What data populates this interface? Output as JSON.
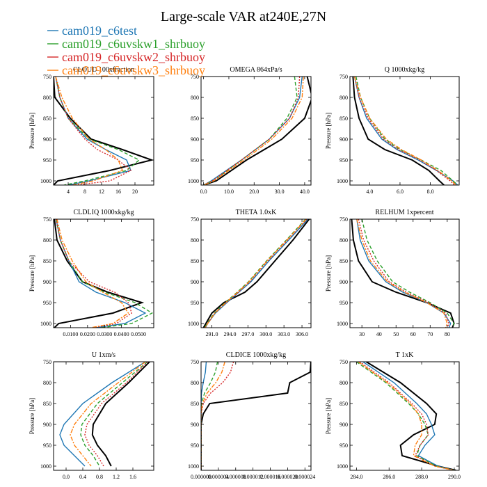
{
  "figure": {
    "title": "Large-scale VAR at240E,27N",
    "legend": {
      "placement": "top-left",
      "entries": [
        {
          "name": "cam019_c6test",
          "color": "#1f77b4",
          "dash": "solid"
        },
        {
          "name": "cam019_c6uvskw1_shrbuoy",
          "color": "#2ca02c",
          "dash": "dashed"
        },
        {
          "name": "cam019_c6uvskw2_shrbuoy",
          "color": "#d62728",
          "dash": "dotted"
        },
        {
          "name": "cam019_c6uvskw3_shrbuoy",
          "color": "#ff7f0e",
          "dash": "dashdot"
        }
      ]
    },
    "black_line_color": "#000000"
  },
  "chart_data": [
    {
      "type": "line",
      "title": "CLOUD  100xfraction",
      "ylabel": "Pressure [hPa]",
      "xlim": [
        0.5,
        24.5
      ],
      "ylim": [
        1010,
        750
      ],
      "xticks": [
        4,
        8,
        12,
        16,
        20
      ],
      "xtick_labels": [
        "4",
        "8",
        "12",
        "16",
        "20"
      ],
      "yticks": [
        750,
        800,
        850,
        900,
        950,
        1000
      ],
      "ytick_labels": [
        "750",
        "800",
        "850",
        "900",
        "950",
        "1000"
      ],
      "pressure": [
        750,
        800,
        850,
        900,
        925,
        950,
        975,
        1000,
        1010
      ],
      "series": [
        {
          "name": "black",
          "x": [
            0.5,
            0.8,
            4.5,
            9.5,
            17,
            24,
            14,
            1.5,
            0.5
          ]
        },
        {
          "name": "cam019_c6test",
          "x": [
            1,
            2,
            4,
            8.5,
            13,
            18,
            19,
            9,
            4
          ]
        },
        {
          "name": "cam019_c6uvskw1_shrbuoy",
          "x": [
            1,
            2,
            4,
            9,
            16,
            21,
            18,
            8,
            3
          ]
        },
        {
          "name": "cam019_c6uvskw2_shrbuoy",
          "x": [
            1,
            2,
            4,
            8,
            11,
            16,
            19,
            14,
            6
          ]
        },
        {
          "name": "cam019_c6uvskw3_shrbuoy",
          "x": [
            1,
            2.5,
            5,
            9,
            13,
            16,
            17,
            10,
            5
          ]
        }
      ]
    },
    {
      "type": "line",
      "title": "OMEGA  864xPa/s",
      "ylabel": "",
      "xlim": [
        -1,
        42.5
      ],
      "ylim": [
        1010,
        750
      ],
      "xticks": [
        0,
        10,
        20,
        30,
        40
      ],
      "xtick_labels": [
        "0.0",
        "10.0",
        "20.0",
        "30.0",
        "40.0"
      ],
      "yticks": [
        750,
        800,
        850,
        900,
        950,
        1000
      ],
      "ytick_labels": [
        "750",
        "800",
        "850",
        "900",
        "950",
        "1000"
      ],
      "pressure": [
        750,
        800,
        850,
        900,
        950,
        1000,
        1010
      ],
      "series": [
        {
          "name": "black",
          "x": [
            41,
            43,
            40,
            31,
            17,
            5,
            0
          ]
        },
        {
          "name": "cam019_c6test",
          "x": [
            39,
            38,
            34,
            26,
            15,
            3,
            0
          ]
        },
        {
          "name": "cam019_c6uvskw1_shrbuoy",
          "x": [
            36,
            37,
            33,
            26,
            15,
            4,
            0
          ]
        },
        {
          "name": "cam019_c6uvskw2_shrbuoy",
          "x": [
            38,
            37.5,
            34,
            26,
            15,
            3.5,
            0
          ]
        },
        {
          "name": "cam019_c6uvskw3_shrbuoy",
          "x": [
            39.5,
            39,
            35,
            27,
            16,
            4,
            0
          ]
        }
      ]
    },
    {
      "type": "line",
      "title": "Q  1000xkg/kg",
      "ylabel": "Pressure [hPa]",
      "xlim": [
        2.7,
        9.9
      ],
      "ylim": [
        1010,
        750
      ],
      "xticks": [
        4,
        6,
        8
      ],
      "xtick_labels": [
        "4.0",
        "6.0",
        "8.0"
      ],
      "yticks": [
        750,
        800,
        850,
        900,
        950,
        1000
      ],
      "ytick_labels": [
        "750",
        "800",
        "850",
        "900",
        "950",
        "1000"
      ],
      "pressure": [
        750,
        800,
        850,
        900,
        925,
        950,
        975,
        1000,
        1010
      ],
      "series": [
        {
          "name": "black",
          "x": [
            2.9,
            3.0,
            3.3,
            3.9,
            5.0,
            6.8,
            7.9,
            8.6,
            8.9
          ]
        },
        {
          "name": "cam019_c6test",
          "x": [
            3.0,
            3.3,
            3.8,
            4.8,
            5.8,
            7.2,
            8.4,
            9.5,
            9.8
          ]
        },
        {
          "name": "cam019_c6uvskw1_shrbuoy",
          "x": [
            3.1,
            3.4,
            4.0,
            5.0,
            6.0,
            7.4,
            8.7,
            9.5,
            9.8
          ]
        },
        {
          "name": "cam019_c6uvskw2_shrbuoy",
          "x": [
            3.0,
            3.3,
            3.9,
            4.9,
            5.9,
            7.3,
            8.4,
            9.3,
            9.6
          ]
        },
        {
          "name": "cam019_c6uvskw3_shrbuoy",
          "x": [
            3.0,
            3.4,
            4.0,
            5.1,
            6.1,
            7.4,
            8.5,
            9.4,
            9.7
          ]
        }
      ]
    },
    {
      "type": "line",
      "title": "CLDLIQ  1000xkg/kg",
      "ylabel": "Pressure [hPa]",
      "xlim": [
        0.0,
        0.059
      ],
      "ylim": [
        1010,
        750
      ],
      "xticks": [
        0.01,
        0.02,
        0.03,
        0.04,
        0.05
      ],
      "xtick_labels": [
        "0.0100",
        "0.0200",
        "0.0300",
        "0.0400",
        "0.0500"
      ],
      "yticks": [
        750,
        800,
        850,
        900,
        950,
        1000
      ],
      "ytick_labels": [
        "750",
        "800",
        "850",
        "900",
        "950",
        "1000"
      ],
      "pressure": [
        750,
        800,
        850,
        900,
        925,
        950,
        975,
        1000,
        1010
      ],
      "series": [
        {
          "name": "black",
          "x": [
            0.0005,
            0.002,
            0.008,
            0.017,
            0.032,
            0.052,
            0.035,
            0.003,
            0.0005
          ]
        },
        {
          "name": "cam019_c6test",
          "x": [
            0.0015,
            0.004,
            0.009,
            0.015,
            0.025,
            0.042,
            0.054,
            0.042,
            0.025
          ]
        },
        {
          "name": "cam019_c6uvskw1_shrbuoy",
          "x": [
            0.0015,
            0.004,
            0.009,
            0.017,
            0.03,
            0.048,
            0.058,
            0.046,
            0.028
          ]
        },
        {
          "name": "cam019_c6uvskw2_shrbuoy",
          "x": [
            0.0015,
            0.004,
            0.009,
            0.021,
            0.036,
            0.044,
            0.046,
            0.037,
            0.023
          ]
        },
        {
          "name": "cam019_c6uvskw3_shrbuoy",
          "x": [
            0.002,
            0.005,
            0.011,
            0.019,
            0.029,
            0.04,
            0.044,
            0.035,
            0.022
          ]
        }
      ]
    },
    {
      "type": "line",
      "title": "THETA  1.0xK",
      "ylabel": "",
      "xlim": [
        289.2,
        307.5
      ],
      "ylim": [
        1010,
        750
      ],
      "xticks": [
        291,
        294,
        297,
        300,
        303,
        306
      ],
      "xtick_labels": [
        "291.0",
        "294.0",
        "297.0",
        "300.0",
        "303.0",
        "306.0"
      ],
      "yticks": [
        750,
        800,
        850,
        900,
        950,
        1000
      ],
      "ytick_labels": [
        "750",
        "800",
        "850",
        "900",
        "950",
        "1000"
      ],
      "pressure": [
        750,
        800,
        850,
        900,
        925,
        950,
        975,
        1000,
        1010
      ],
      "series": [
        {
          "name": "black",
          "x": [
            307.2,
            304.5,
            301.5,
            298.5,
            296.5,
            293,
            291,
            290,
            289.6
          ]
        },
        {
          "name": "cam019_c6test",
          "x": [
            307.0,
            303.8,
            300.5,
            297.5,
            295.5,
            293.5,
            291.6,
            290.3,
            289.9
          ]
        },
        {
          "name": "cam019_c6uvskw1_shrbuoy",
          "x": [
            306.6,
            303.4,
            300.1,
            297.1,
            295.2,
            293.2,
            291.4,
            290.2,
            289.8
          ]
        },
        {
          "name": "cam019_c6uvskw2_shrbuoy",
          "x": [
            306.8,
            303.6,
            300.3,
            297.3,
            295.4,
            293.4,
            291.5,
            290.3,
            289.9
          ]
        },
        {
          "name": "cam019_c6uvskw3_shrbuoy",
          "x": [
            306.7,
            303.5,
            300.2,
            297.2,
            295.3,
            293.3,
            291.5,
            290.3,
            289.9
          ]
        }
      ]
    },
    {
      "type": "line",
      "title": "RELHUM  1xpercent",
      "ylabel": "Pressure [hPa]",
      "xlim": [
        23,
        87
      ],
      "ylim": [
        1010,
        750
      ],
      "xticks": [
        30,
        40,
        50,
        60,
        70,
        80
      ],
      "xtick_labels": [
        "30",
        "40",
        "50",
        "60",
        "70",
        "80"
      ],
      "yticks": [
        750,
        800,
        850,
        900,
        950,
        1000
      ],
      "ytick_labels": [
        "750",
        "800",
        "850",
        "900",
        "950",
        "1000"
      ],
      "pressure": [
        750,
        800,
        850,
        900,
        925,
        950,
        975,
        1000,
        1010
      ],
      "series": [
        {
          "name": "black",
          "x": [
            24,
            25,
            28,
            36,
            50,
            68,
            82,
            84,
            83
          ]
        },
        {
          "name": "cam019_c6test",
          "x": [
            27,
            29,
            34,
            44,
            54,
            68,
            78,
            82,
            81
          ]
        },
        {
          "name": "cam019_c6uvskw1_shrbuoy",
          "x": [
            30,
            33,
            39,
            48,
            58,
            70,
            80,
            84,
            83
          ]
        },
        {
          "name": "cam019_c6uvskw2_shrbuoy",
          "x": [
            28,
            31,
            37,
            46,
            56,
            69,
            79,
            81,
            80
          ]
        },
        {
          "name": "cam019_c6uvskw3_shrbuoy",
          "x": [
            27,
            30,
            35,
            45,
            55,
            68,
            78,
            80,
            79
          ]
        }
      ]
    },
    {
      "type": "line",
      "title": "U  1xm/s",
      "ylabel": "Pressure [hPa]",
      "xlim": [
        -0.3,
        2.1
      ],
      "ylim": [
        1010,
        750
      ],
      "xticks": [
        0.0,
        0.4,
        0.8,
        1.2,
        1.6
      ],
      "xtick_labels": [
        "0.0",
        "0.4",
        "0.8",
        "1.2",
        "1.6"
      ],
      "yticks": [
        750,
        800,
        850,
        900,
        950,
        1000
      ],
      "ytick_labels": [
        "750",
        "800",
        "850",
        "900",
        "950",
        "1000"
      ],
      "pressure": [
        750,
        800,
        850,
        900,
        925,
        950,
        975,
        1000
      ],
      "series": [
        {
          "name": "black",
          "x": [
            2.0,
            1.5,
            0.95,
            0.65,
            0.63,
            0.75,
            0.95,
            1.08
          ]
        },
        {
          "name": "cam019_c6test",
          "x": [
            1.9,
            1.1,
            0.4,
            -0.05,
            -0.15,
            -0.05,
            0.2,
            0.45
          ]
        },
        {
          "name": "cam019_c6uvskw1_shrbuoy",
          "x": [
            1.95,
            1.35,
            0.75,
            0.38,
            0.35,
            0.45,
            0.65,
            0.8
          ]
        },
        {
          "name": "cam019_c6uvskw2_shrbuoy",
          "x": [
            1.95,
            1.45,
            0.85,
            0.5,
            0.45,
            0.55,
            0.75,
            0.9
          ]
        },
        {
          "name": "cam019_c6uvskw3_shrbuoy",
          "x": [
            1.9,
            1.25,
            0.6,
            0.2,
            0.1,
            0.2,
            0.4,
            0.6
          ]
        }
      ]
    },
    {
      "type": "line",
      "title": "CLDICE  1000xkg/kg",
      "ylabel": "",
      "xlim": [
        0.0,
        2.54e-05
      ],
      "ylim": [
        1010,
        750
      ],
      "xticks": [
        0.0,
        4e-06,
        8e-06,
        1.2e-05,
        1.6e-05,
        2e-05,
        2.4e-05
      ],
      "xtick_labels": [
        "0.000000",
        "0.000004",
        "0.000008",
        "0.000012",
        "0.000016",
        "0.000020",
        "0.000024"
      ],
      "yticks": [
        750,
        800,
        850,
        900,
        950,
        1000
      ],
      "ytick_labels": [
        "750",
        "800",
        "850",
        "900",
        "950",
        "1000"
      ],
      "pressure": [
        750,
        775,
        800,
        825,
        850,
        875,
        900,
        950,
        1000,
        1010
      ],
      "series": [
        {
          "name": "black",
          "x": [
            2.54e-05,
            2.52e-05,
            2.05e-05,
            2e-05,
            2e-06,
            5e-07,
            0.0,
            0.0,
            0.0,
            0.0
          ]
        },
        {
          "name": "cam019_c6test",
          "x": [
            1.2e-06,
            1e-06,
            5e-07,
            1e-07,
            0.0,
            0.0,
            0.0,
            0.0,
            0.0,
            0.0
          ]
        },
        {
          "name": "cam019_c6uvskw1_shrbuoy",
          "x": [
            3.8e-06,
            3.3e-06,
            2.2e-06,
            8e-07,
            1e-07,
            0.0,
            0.0,
            0.0,
            0.0,
            0.0
          ]
        },
        {
          "name": "cam019_c6uvskw2_shrbuoy",
          "x": [
            7.5e-06,
            6.8e-06,
            5e-06,
            2.2e-06,
            5e-07,
            0.0,
            0.0,
            0.0,
            0.0,
            0.0
          ]
        },
        {
          "name": "cam019_c6uvskw3_shrbuoy",
          "x": [
            5.5e-06,
            4.8e-06,
            3.4e-06,
            1.4e-06,
            3e-07,
            0.0,
            0.0,
            0.0,
            0.0,
            0.0
          ]
        }
      ]
    },
    {
      "type": "line",
      "title": "T  1xK",
      "ylabel": "Pressure [hPa]",
      "xlim": [
        283.6,
        290.3
      ],
      "ylim": [
        1010,
        750
      ],
      "xticks": [
        284,
        286,
        288,
        290
      ],
      "xtick_labels": [
        "284.0",
        "286.0",
        "288.0",
        "290.0"
      ],
      "yticks": [
        750,
        800,
        850,
        900,
        950,
        1000
      ],
      "ytick_labels": [
        "750",
        "800",
        "850",
        "900",
        "950",
        "1000"
      ],
      "pressure": [
        750,
        800,
        850,
        875,
        900,
        925,
        950,
        975,
        1000,
        1010
      ],
      "series": [
        {
          "name": "black",
          "x": [
            284.6,
            286.7,
            288.3,
            288.9,
            288.8,
            287.5,
            286.7,
            286.8,
            289.0,
            290.1
          ]
        },
        {
          "name": "cam019_c6test",
          "x": [
            284.4,
            286.3,
            287.7,
            288.3,
            288.6,
            288.8,
            288.2,
            287.8,
            289.0,
            290.0
          ]
        },
        {
          "name": "cam019_c6uvskw1_shrbuoy",
          "x": [
            284.0,
            285.8,
            287.2,
            287.8,
            288.2,
            288.4,
            287.9,
            287.7,
            288.9,
            290.0
          ]
        },
        {
          "name": "cam019_c6uvskw2_shrbuoy",
          "x": [
            284.2,
            286.0,
            287.4,
            288.0,
            288.3,
            288.4,
            287.9,
            287.6,
            288.8,
            290.0
          ]
        },
        {
          "name": "cam019_c6uvskw3_shrbuoy",
          "x": [
            284.1,
            285.9,
            287.3,
            287.8,
            288.0,
            288.0,
            287.6,
            287.5,
            288.8,
            290.0
          ]
        }
      ]
    }
  ]
}
